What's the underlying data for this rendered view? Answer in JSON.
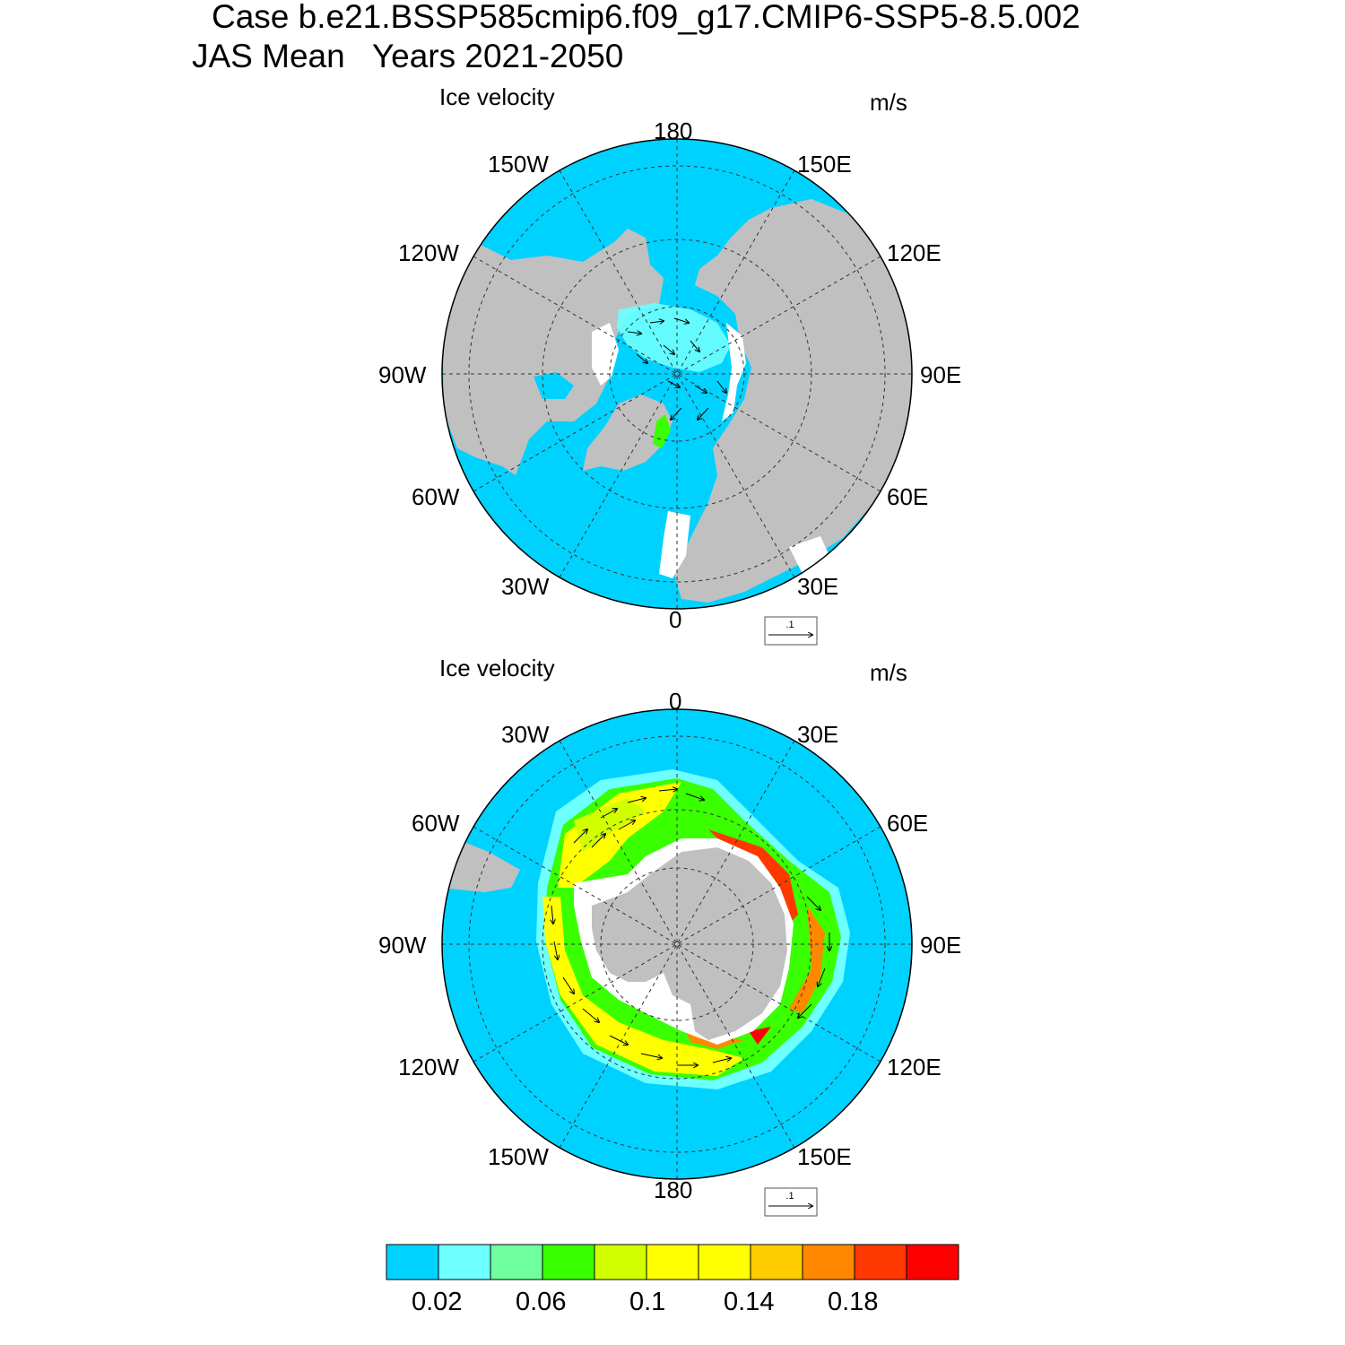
{
  "title": {
    "line1": "Case b.e21.BSSP585cmip6.f09_g17.CMIP6-SSP5-8.5.002",
    "line2": "JAS Mean   Years 2021-2050"
  },
  "panels": [
    {
      "id": "north",
      "variable": "Ice velocity",
      "units": "m/s",
      "ref_vector": ".1",
      "lon_labels": [
        "180",
        "150E",
        "120E",
        "90E",
        "60E",
        "30E",
        "0",
        "30W",
        "60W",
        "90W",
        "120W",
        "150W"
      ]
    },
    {
      "id": "south",
      "variable": "Ice velocity",
      "units": "m/s",
      "ref_vector": ".1",
      "lon_labels": [
        "0",
        "30E",
        "60E",
        "90E",
        "120E",
        "150E",
        "180",
        "150W",
        "120W",
        "90W",
        "60W",
        "30W"
      ]
    }
  ],
  "colorbar": {
    "colors": [
      "#00d2ff",
      "#6effff",
      "#6fff9f",
      "#3aff00",
      "#d2ff00",
      "#ffff00",
      "#ffff00",
      "#ffcc00",
      "#ff8800",
      "#ff3800",
      "#ff0000"
    ],
    "labels": [
      "0.02",
      "0.06",
      "0.1",
      "0.14",
      "0.18"
    ]
  },
  "colors": {
    "ocean_ice": "#00d2ff",
    "land": "#c0c0c0",
    "open_water": "#ffffff"
  }
}
